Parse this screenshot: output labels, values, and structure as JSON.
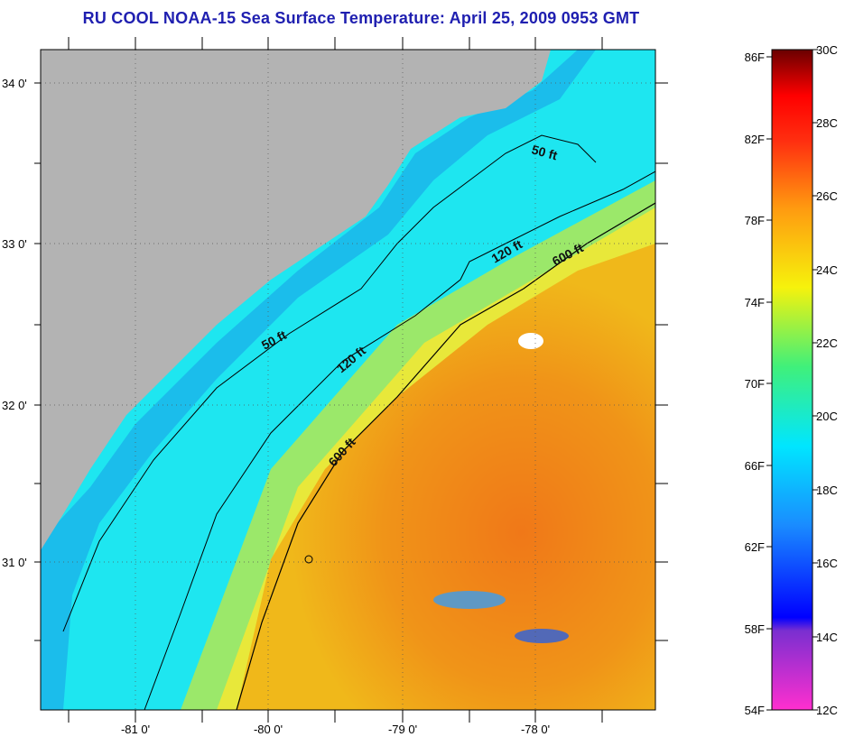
{
  "title": "RU COOL  NOAA-15  Sea Surface Temperature:  April 25, 2009 0953 GMT",
  "map": {
    "lat_labels": [
      "34 0'",
      "33 0'",
      "32 0'",
      "31 0'"
    ],
    "lon_labels": [
      "-81 0'",
      "-80 0'",
      "-79 0'",
      "-78 0'"
    ],
    "contours": [
      "50 ft",
      "50 ft",
      "120 ft",
      "120 ft",
      "600 ft",
      "600 ft"
    ],
    "colors": {
      "land": "#b3b3b3",
      "cold": "#19e8f0",
      "warm": "#f0a01a",
      "hot": "#f07a14"
    }
  },
  "colorbar": {
    "fahrenheit": [
      "86F",
      "82F",
      "78F",
      "74F",
      "70F",
      "66F",
      "62F",
      "58F",
      "54F"
    ],
    "celsius": [
      "30C",
      "28C",
      "26C",
      "24C",
      "22C",
      "20C",
      "18C",
      "16C",
      "14C",
      "12C"
    ]
  }
}
